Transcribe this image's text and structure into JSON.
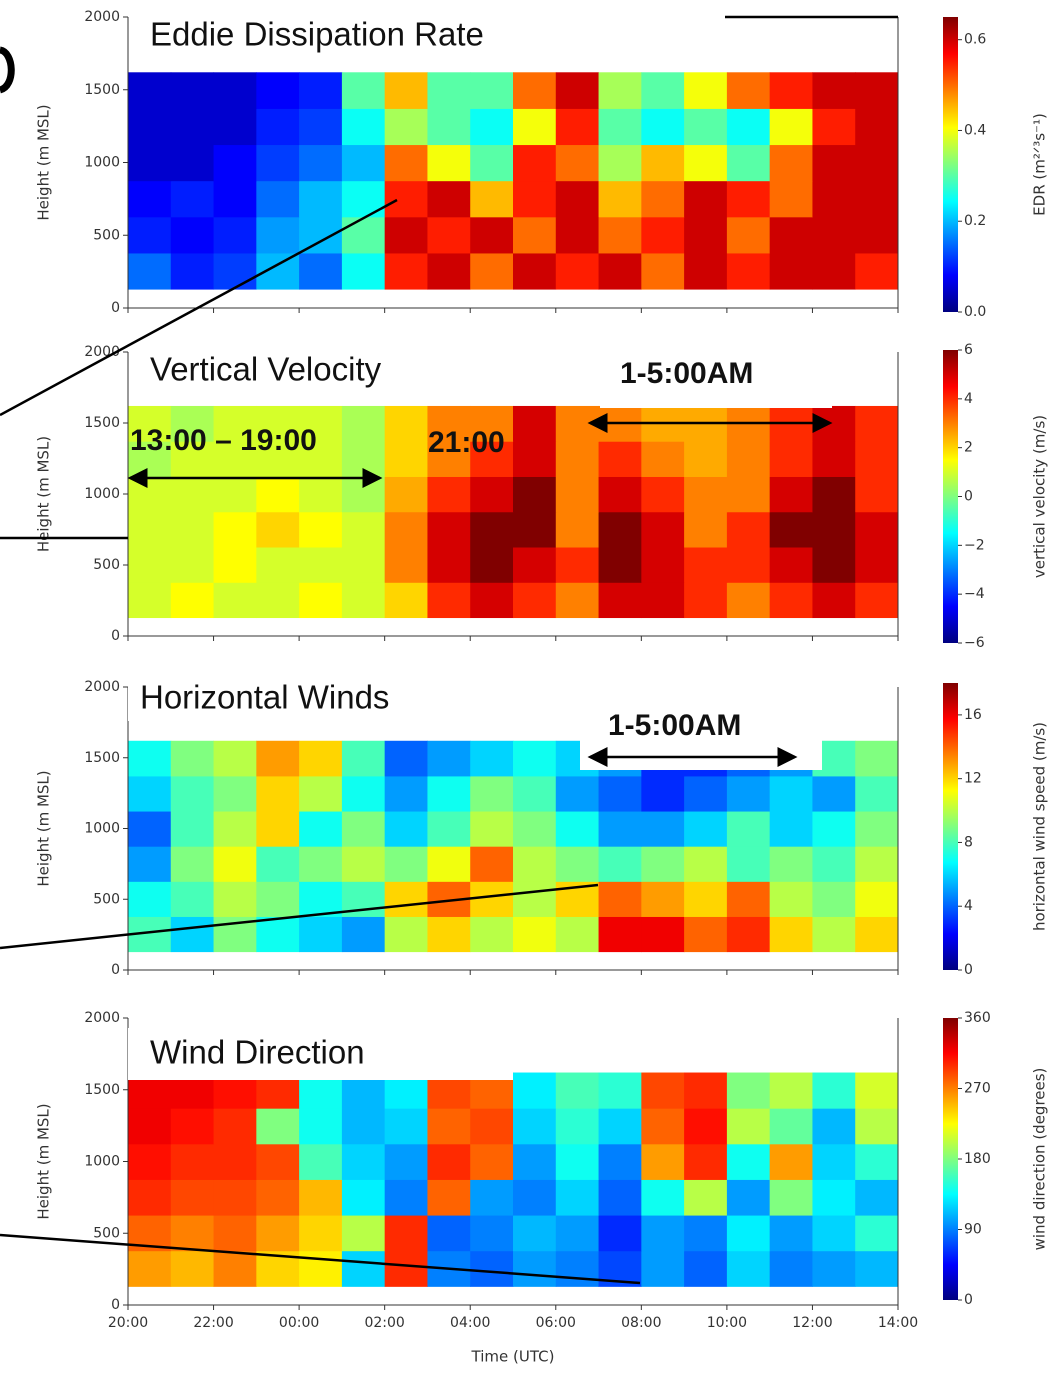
{
  "chart_data": [
    {
      "type": "heatmap",
      "title": "Eddie Dissipation Rate",
      "ylabel": "Height (m MSL)",
      "ylim": [
        0,
        2000
      ],
      "yticks": [
        0,
        500,
        1000,
        1500,
        2000
      ],
      "data_ylim": [
        130,
        1620
      ],
      "z": [
        [
          0.15,
          0.1,
          0.12,
          0.2,
          0.15,
          0.25,
          0.55,
          0.6,
          0.5,
          0.6,
          0.55,
          0.6,
          0.5,
          0.6,
          0.55,
          0.6,
          0.6,
          0.55
        ],
        [
          0.1,
          0.08,
          0.1,
          0.18,
          0.2,
          0.3,
          0.6,
          0.55,
          0.6,
          0.5,
          0.6,
          0.5,
          0.55,
          0.6,
          0.5,
          0.6,
          0.6,
          0.6
        ],
        [
          0.08,
          0.1,
          0.08,
          0.15,
          0.2,
          0.25,
          0.55,
          0.6,
          0.45,
          0.55,
          0.6,
          0.45,
          0.5,
          0.6,
          0.55,
          0.5,
          0.6,
          0.6
        ],
        [
          0.05,
          0.05,
          0.08,
          0.12,
          0.15,
          0.2,
          0.5,
          0.4,
          0.3,
          0.55,
          0.5,
          0.35,
          0.45,
          0.4,
          0.3,
          0.5,
          0.6,
          0.6
        ],
        [
          0.05,
          0.05,
          0.05,
          0.1,
          0.12,
          0.25,
          0.35,
          0.3,
          0.25,
          0.4,
          0.55,
          0.3,
          0.25,
          0.3,
          0.25,
          0.4,
          0.55,
          0.6
        ],
        [
          0.05,
          0.05,
          0.05,
          0.08,
          0.1,
          0.3,
          0.45,
          0.3,
          0.3,
          0.5,
          0.6,
          0.35,
          0.3,
          0.4,
          0.5,
          0.55,
          0.6,
          0.6
        ]
      ],
      "colorbar": {
        "label": "EDR (m²ᐟ³s⁻¹)",
        "lim": [
          0,
          0.65
        ],
        "ticks": [
          {
            "value": 0,
            "label": "0.0"
          },
          0.2,
          0.4,
          0.6
        ]
      },
      "annotations": []
    },
    {
      "type": "heatmap",
      "title": "Vertical Velocity",
      "ylabel": "Height (m MSL)",
      "ylim": [
        0,
        2000
      ],
      "yticks": [
        0,
        500,
        1000,
        1500,
        2000
      ],
      "data_ylim": [
        130,
        1620
      ],
      "z": [
        [
          1,
          1.5,
          1,
          1,
          1.5,
          1,
          2,
          4,
          5,
          4,
          3,
          5,
          5,
          4,
          3,
          4,
          5,
          4
        ],
        [
          1,
          1,
          1.5,
          1,
          1,
          1,
          3,
          5,
          6,
          5,
          4,
          6,
          5,
          4,
          4,
          5,
          6,
          5
        ],
        [
          1,
          1,
          1.5,
          2,
          1.5,
          1,
          3,
          5,
          6,
          6,
          3,
          6,
          5,
          3,
          4,
          6,
          6,
          5
        ],
        [
          1,
          1,
          1,
          1.5,
          1,
          0.5,
          2.5,
          4,
          5,
          6,
          3,
          5,
          4,
          3,
          3,
          5,
          6,
          4
        ],
        [
          0.5,
          1,
          1,
          1,
          1,
          0.5,
          2,
          3,
          4,
          5,
          3,
          4,
          3,
          2.5,
          3,
          4,
          5,
          4
        ],
        [
          1,
          0.5,
          1,
          1,
          1,
          0.5,
          2,
          3,
          3,
          5,
          3,
          3,
          2.5,
          2.5,
          3,
          4,
          5,
          4
        ]
      ],
      "colorbar": {
        "label": "vertical velocity (m/s)",
        "lim": [
          -6,
          6
        ],
        "ticks": [
          {
            "value": -6,
            "label": "−6"
          },
          {
            "value": -4,
            "label": "−4"
          },
          {
            "value": -2,
            "label": "−2"
          },
          0,
          2,
          4,
          6
        ]
      },
      "annotations": [
        "13:00 – 19:00",
        "21:00",
        "1-5:00AM"
      ]
    },
    {
      "type": "heatmap",
      "title": "Horizontal Winds",
      "ylabel": "Height (m MSL)",
      "ylim": [
        0,
        2000
      ],
      "yticks": [
        0,
        500,
        1000,
        1500,
        2000
      ],
      "data_ylim": [
        130,
        1620
      ],
      "z": [
        [
          8,
          6,
          9,
          7,
          6,
          5,
          10,
          12,
          10,
          11,
          10,
          16,
          16,
          14,
          15,
          12,
          10,
          12
        ],
        [
          7,
          8,
          10,
          9,
          7,
          8,
          12,
          14,
          12,
          10,
          12,
          14,
          13,
          12,
          14,
          10,
          9,
          11
        ],
        [
          5,
          9,
          11,
          8,
          9,
          10,
          9,
          11,
          14,
          10,
          9,
          8,
          9,
          10,
          8,
          9,
          8,
          10
        ],
        [
          4,
          8,
          10,
          12,
          7,
          9,
          6,
          8,
          10,
          9,
          7,
          5,
          5,
          6,
          8,
          6,
          7,
          9
        ],
        [
          6,
          8,
          9,
          12,
          10,
          7,
          5,
          7,
          9,
          8,
          5,
          4,
          3,
          4,
          5,
          6,
          5,
          8
        ],
        [
          7,
          9,
          10,
          13,
          12,
          8,
          4,
          5,
          6,
          7,
          6,
          5,
          3,
          3,
          4,
          5,
          8,
          9
        ]
      ],
      "colorbar": {
        "label": "horizontal wind speed (m/s)",
        "lim": [
          0,
          18
        ],
        "ticks": [
          0,
          4,
          8,
          12,
          16
        ]
      },
      "annotations": [
        "1-5:00AM"
      ]
    },
    {
      "type": "heatmap",
      "title": "Wind Direction",
      "ylabel": "Height (m MSL)",
      "xlabel": "Time (UTC)",
      "ylim": [
        0,
        2000
      ],
      "yticks": [
        0,
        500,
        1000,
        1500,
        2000
      ],
      "data_ylim": [
        130,
        1620
      ],
      "xticks": [
        "20:00",
        "22:00",
        "00:00",
        "02:00",
        "04:00",
        "06:00",
        "08:00",
        "10:00",
        "12:00",
        "14:00"
      ],
      "z": [
        [
          260,
          250,
          270,
          240,
          230,
          120,
          300,
          90,
          80,
          100,
          90,
          70,
          100,
          80,
          120,
          90,
          100,
          110
        ],
        [
          280,
          270,
          280,
          260,
          240,
          200,
          300,
          80,
          90,
          110,
          100,
          60,
          100,
          90,
          130,
          100,
          120,
          150
        ],
        [
          300,
          290,
          290,
          280,
          250,
          130,
          90,
          280,
          100,
          90,
          120,
          80,
          140,
          200,
          100,
          180,
          130,
          110
        ],
        [
          310,
          300,
          300,
          290,
          160,
          120,
          100,
          300,
          280,
          100,
          140,
          90,
          260,
          300,
          140,
          260,
          120,
          150
        ],
        [
          320,
          310,
          300,
          180,
          140,
          110,
          120,
          280,
          290,
          120,
          150,
          120,
          280,
          310,
          200,
          170,
          110,
          200
        ],
        [
          320,
          320,
          310,
          300,
          140,
          110,
          130,
          290,
          280,
          130,
          160,
          150,
          290,
          300,
          180,
          200,
          150,
          210
        ]
      ],
      "colorbar": {
        "label": "wind direction (degrees)",
        "lim": [
          0,
          360
        ],
        "ticks": [
          0,
          90,
          180,
          270,
          360
        ]
      },
      "annotations": []
    }
  ]
}
